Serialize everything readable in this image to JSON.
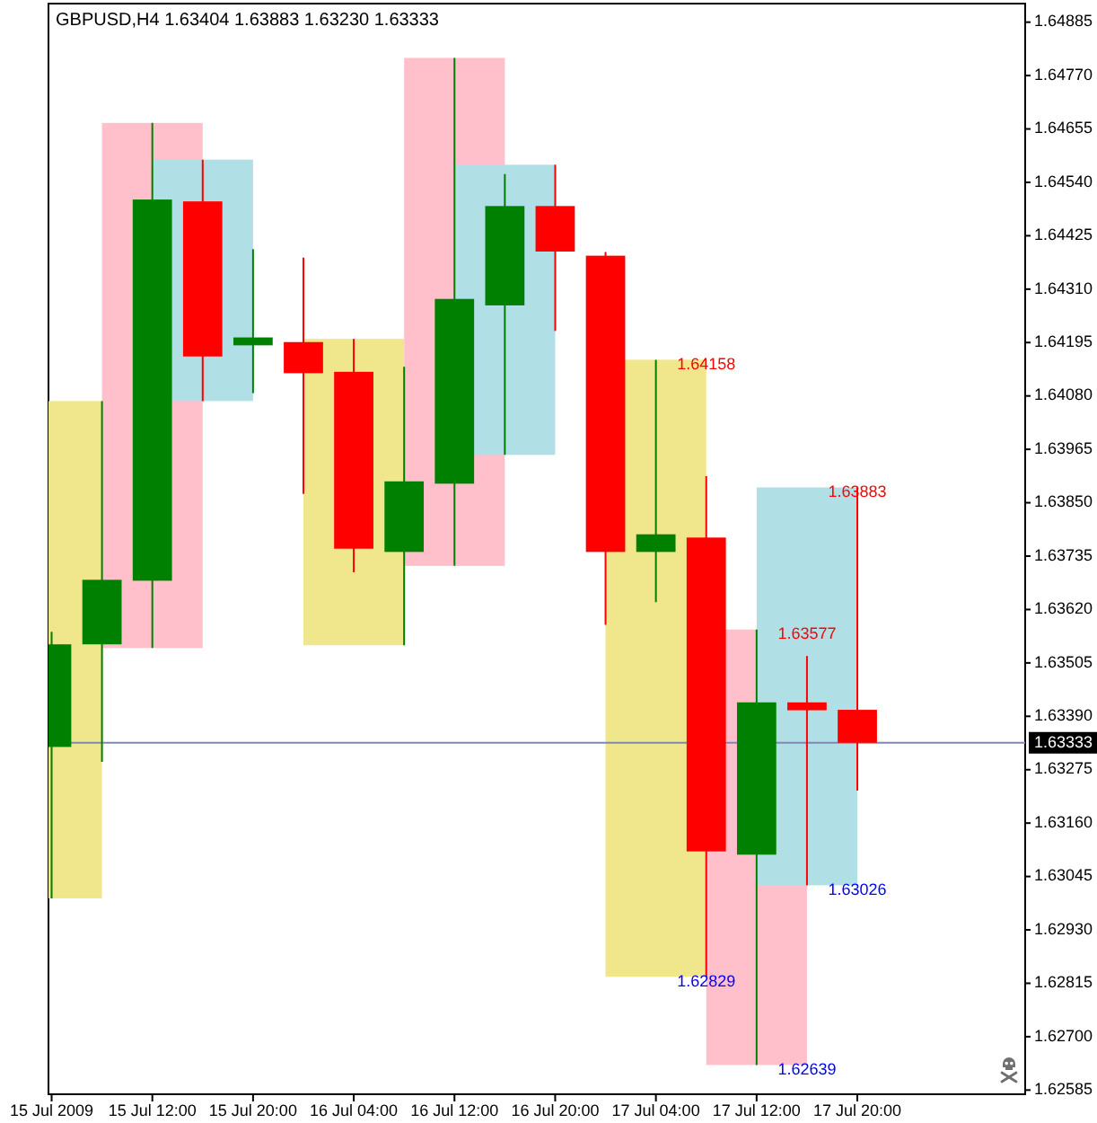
{
  "chart_data": {
    "type": "candlestick",
    "title": "GBPUSD,H4 1.63404 1.63883 1.63230 1.63333",
    "x": [
      "2009-07-15T04:00",
      "2009-07-15T08:00",
      "2009-07-15T12:00",
      "2009-07-15T16:00",
      "2009-07-15T20:00",
      "2009-07-16T00:00",
      "2009-07-16T04:00",
      "2009-07-16T08:00",
      "2009-07-16T12:00",
      "2009-07-16T16:00",
      "2009-07-16T20:00",
      "2009-07-17T00:00",
      "2009-07-17T04:00",
      "2009-07-17T08:00",
      "2009-07-17T12:00",
      "2009-07-17T16:00",
      "2009-07-17T20:00"
    ],
    "ohlc": [
      [
        1.63324,
        1.63572,
        1.62998,
        1.63545
      ],
      [
        1.63545,
        1.64069,
        1.63292,
        1.63684
      ],
      [
        1.63682,
        1.64668,
        1.63537,
        1.64503
      ],
      [
        1.64499,
        1.64589,
        1.64069,
        1.64165
      ],
      [
        1.64189,
        1.64396,
        1.64086,
        1.64206
      ],
      [
        1.64196,
        1.64378,
        1.63869,
        1.64129
      ],
      [
        1.64132,
        1.64203,
        1.637,
        1.63751
      ],
      [
        1.63744,
        1.64143,
        1.63543,
        1.63896
      ],
      [
        1.63891,
        1.64808,
        1.63714,
        1.64289
      ],
      [
        1.64275,
        1.64558,
        1.63953,
        1.64489
      ],
      [
        1.64489,
        1.64578,
        1.6422,
        1.64391
      ],
      [
        1.64382,
        1.6439,
        1.63587,
        1.63744
      ],
      [
        1.63744,
        1.64158,
        1.63636,
        1.63782
      ],
      [
        1.63775,
        1.63907,
        1.62829,
        1.63099
      ],
      [
        1.63092,
        1.63577,
        1.62639,
        1.6342
      ],
      [
        1.6342,
        1.6352,
        1.63026,
        1.63403
      ],
      [
        1.63404,
        1.63883,
        1.6323,
        1.63333
      ]
    ],
    "colors": [
      "#008000",
      "#008000",
      "#008000",
      "#ff0000",
      "#008000",
      "#ff0000",
      "#ff0000",
      "#008000",
      "#008000",
      "#008000",
      "#ff0000",
      "#ff0000",
      "#008000",
      "#ff0000",
      "#008000",
      "#ff0000",
      "#ff0000"
    ],
    "series": [
      {
        "type": "bar",
        "color": "#f0e68c",
        "x": [
          "2009-07-15T04:00",
          "2009-07-16T04:00",
          "2009-07-17T04:00"
        ],
        "base": [
          1.62998,
          1.63543,
          1.62829
        ],
        "values": [
          0.01071,
          0.0066,
          0.01329
        ]
      },
      {
        "type": "bar",
        "color": "#ffc0cb",
        "x": [
          "2009-07-15T12:00",
          "2009-07-16T12:00",
          "2009-07-17T12:00"
        ],
        "base": [
          1.63537,
          1.63714,
          1.62639
        ],
        "values": [
          0.01131,
          0.01094,
          0.00938
        ]
      },
      {
        "type": "bar",
        "color": "#b0e0e6",
        "x": [
          "2009-07-15T16:00",
          "2009-07-16T16:00",
          "2009-07-17T16:00"
        ],
        "base": [
          1.64069,
          1.63953,
          1.63026
        ],
        "values": [
          0.0052,
          0.00625,
          0.00857
        ]
      }
    ],
    "xlim": [
      "2009-07-15T03:45",
      "2009-07-18T09:20"
    ],
    "xticks": [
      {
        "value": "2009-07-15T04:00",
        "label": "15 Jul 2009"
      },
      {
        "value": "2009-07-15T12:00",
        "label": "15 Jul 12:00"
      },
      {
        "value": "2009-07-15T20:00",
        "label": "15 Jul 20:00"
      },
      {
        "value": "2009-07-16T04:00",
        "label": "16 Jul 04:00"
      },
      {
        "value": "2009-07-16T12:00",
        "label": "16 Jul 12:00"
      },
      {
        "value": "2009-07-16T20:00",
        "label": "16 Jul 20:00"
      },
      {
        "value": "2009-07-17T04:00",
        "label": "17 Jul 04:00"
      },
      {
        "value": "2009-07-17T12:00",
        "label": "17 Jul 12:00"
      },
      {
        "value": "2009-07-17T20:00",
        "label": "17 Jul 20:00"
      }
    ],
    "ylim": [
      1.62576,
      1.64925
    ],
    "yticks": [
      1.62585,
      {
        "value": 1.627,
        "label": "1.62700"
      },
      1.62815,
      {
        "value": 1.6293,
        "label": "1.62930"
      },
      1.63045,
      {
        "value": 1.6316,
        "label": "1.63160"
      },
      1.63275,
      {
        "value": 1.6339,
        "label": "1.63390"
      },
      1.63505,
      {
        "value": 1.6362,
        "label": "1.63620"
      },
      1.63735,
      {
        "value": 1.6385,
        "label": "1.63850"
      },
      1.63965,
      {
        "value": 1.6408,
        "label": "1.64080"
      },
      1.64195,
      {
        "value": 1.6431,
        "label": "1.64310"
      },
      1.64425,
      {
        "value": 1.6454,
        "label": "1.64540"
      },
      1.64655,
      {
        "value": 1.6477,
        "label": "1.64770"
      },
      1.64885
    ],
    "ref_lines": [
      {
        "axis": "y",
        "value": 1.63333,
        "label": "1.63333",
        "color": "#8088b0"
      }
    ],
    "annotations": [
      {
        "text": "1.64158",
        "x": "2009-07-17T08:00",
        "y": 1.64158
      },
      {
        "text": "1.62829",
        "x": "2009-07-17T08:00",
        "y": 1.62829
      },
      {
        "text": "1.63577",
        "x": "2009-07-17T16:00",
        "y": 1.63577
      },
      {
        "text": "1.62639",
        "x": "2009-07-17T16:00",
        "y": 1.62639
      },
      {
        "text": "1.63883",
        "x": "2009-07-17T20:00",
        "y": 1.63883
      },
      {
        "text": "1.63026",
        "x": "2009-07-17T20:00",
        "y": 1.63026
      }
    ]
  }
}
